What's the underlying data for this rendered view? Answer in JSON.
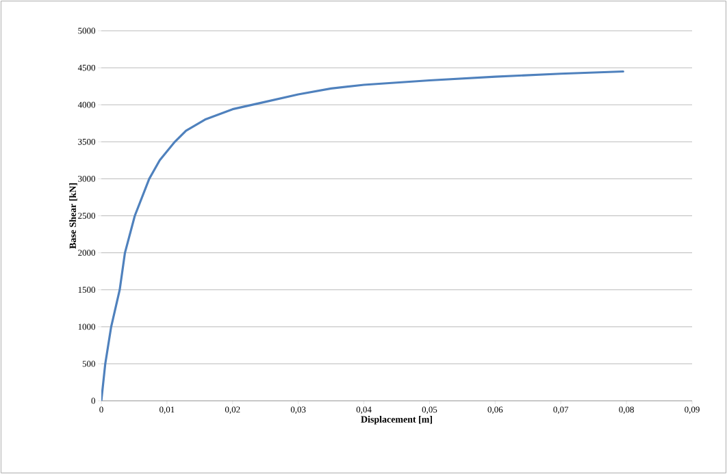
{
  "chart_data": {
    "type": "line",
    "xlabel": "Displacement [m]",
    "ylabel": "Base Shear [kN]",
    "x": [
      0,
      0.0006,
      0.0015,
      0.0028,
      0.0036,
      0.0051,
      0.0073,
      0.0089,
      0.0112,
      0.0129,
      0.0158,
      0.02,
      0.025,
      0.03,
      0.035,
      0.04,
      0.05,
      0.06,
      0.07,
      0.0795
    ],
    "series": [
      {
        "color": "#4f81bd",
        "values": [
          0,
          500,
          1000,
          1500,
          2000,
          2500,
          3000,
          3250,
          3500,
          3650,
          3800,
          3940,
          4040,
          4140,
          4220,
          4270,
          4330,
          4380,
          4420,
          4450
        ]
      }
    ],
    "xlim": [
      0,
      0.09
    ],
    "ylim": [
      0,
      5000
    ],
    "xticks": [
      0,
      {
        "value": 0.01,
        "label": "0,01"
      },
      {
        "value": 0.02,
        "label": "0,02"
      },
      {
        "value": 0.03,
        "label": "0,03"
      },
      {
        "value": 0.04,
        "label": "0,04"
      },
      {
        "value": 0.05,
        "label": "0,05"
      },
      {
        "value": 0.06,
        "label": "0,06"
      },
      {
        "value": 0.07,
        "label": "0,07"
      },
      {
        "value": 0.08,
        "label": "0,08"
      },
      {
        "value": 0.09,
        "label": "0,09"
      }
    ],
    "yticks": [
      0,
      500,
      1000,
      1500,
      2000,
      2500,
      3000,
      3500,
      4000,
      4500,
      5000
    ],
    "grid": "y",
    "marker": "none",
    "line_style": "solid"
  }
}
